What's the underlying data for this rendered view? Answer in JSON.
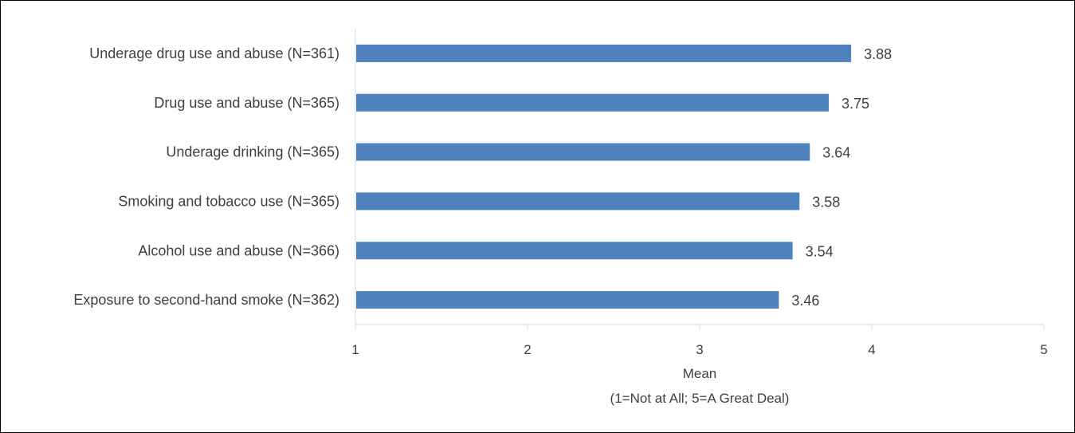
{
  "chart_data": {
    "type": "bar",
    "orientation": "horizontal",
    "categories": [
      "Underage drug use and abuse (N=361)",
      "Drug use and abuse (N=365)",
      "Underage drinking (N=365)",
      "Smoking and tobacco use (N=365)",
      "Alcohol use and abuse (N=366)",
      "Exposure to second-hand smoke (N=362)"
    ],
    "values": [
      3.88,
      3.75,
      3.64,
      3.58,
      3.54,
      3.46
    ],
    "value_labels": [
      "3.88",
      "3.75",
      "3.64",
      "3.58",
      "3.54",
      "3.46"
    ],
    "xlabel": "Mean",
    "xlabel_sub": "(1=Not at All; 5=A Great Deal)",
    "xlim": [
      1,
      5
    ],
    "xticks": [
      1,
      2,
      3,
      4,
      5
    ],
    "xtick_labels": [
      "1",
      "2",
      "3",
      "4",
      "5"
    ],
    "grid": false,
    "bar_color": "#4f81bd",
    "axis_color": "#d9d9d9"
  }
}
